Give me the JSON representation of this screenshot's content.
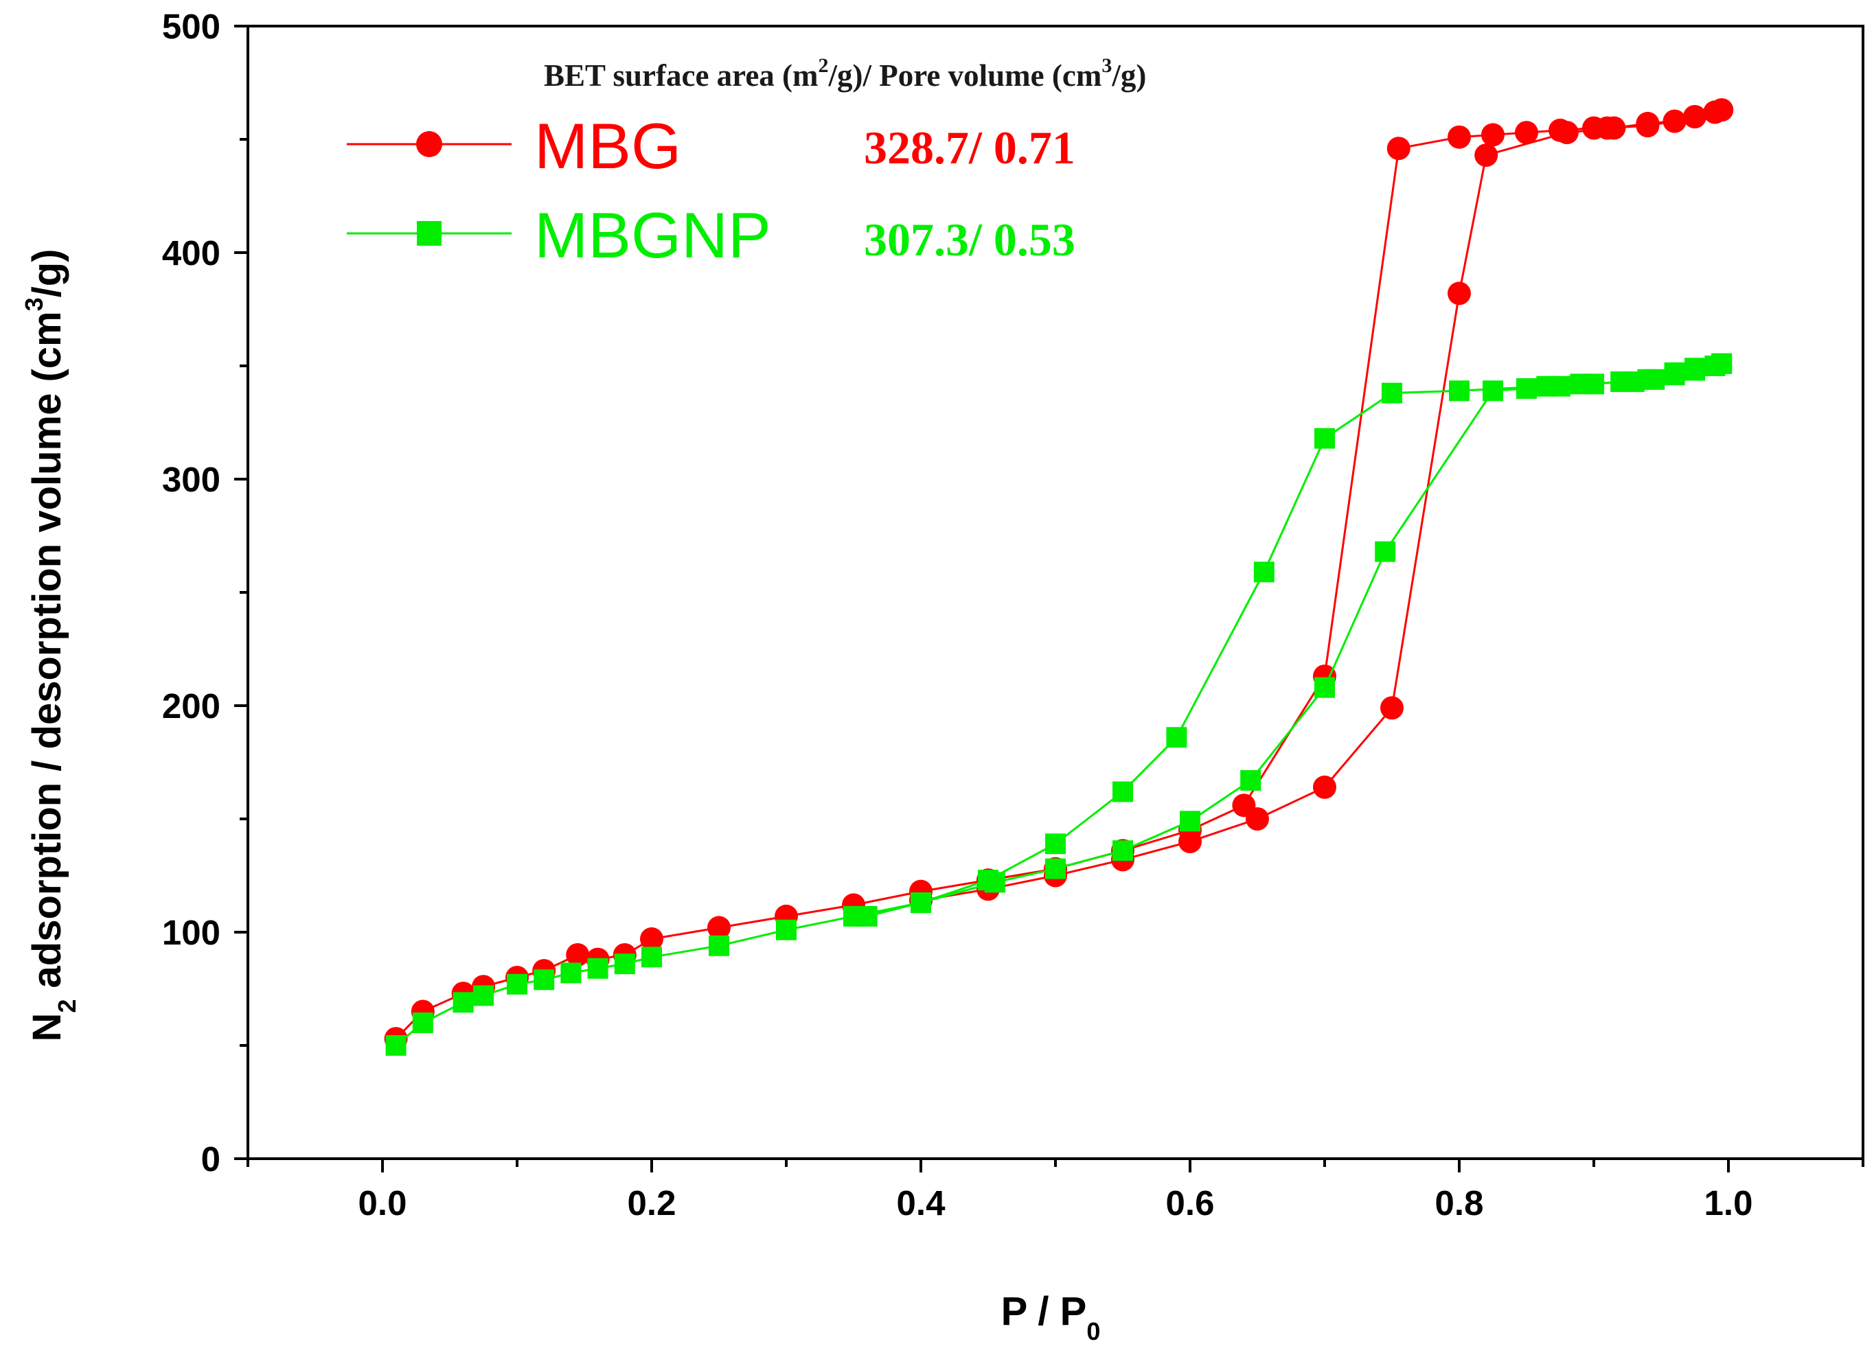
{
  "chart_data": {
    "type": "line",
    "xlabel": "P / P",
    "xlabel_subscript": "0",
    "ylabel_prefix": "N",
    "ylabel_prefix_subscript": "2",
    "ylabel_mid": " adsorption / desorption volume (cm",
    "ylabel_superscript": "3",
    "ylabel_suffix": "/g)",
    "xlim": [
      -0.1,
      1.1
    ],
    "ylim": [
      0,
      500
    ],
    "xticks": [
      0.0,
      0.2,
      0.4,
      0.6,
      0.8,
      1.0
    ],
    "xtick_labels": [
      "0.0",
      "0.2",
      "0.4",
      "0.6",
      "0.8",
      "1.0"
    ],
    "yticks": [
      0,
      100,
      200,
      300,
      400,
      500
    ],
    "ytick_labels": [
      "0",
      "100",
      "200",
      "300",
      "400",
      "500"
    ],
    "legend_header": {
      "part1": "BET surface area (m",
      "sup1": "2",
      "part2": "/g)/ Pore volume (cm",
      "sup2": "3",
      "part3": "/g)"
    },
    "series": [
      {
        "name": "MBG",
        "value_label": "328.7/ 0.71",
        "color": "#ff0000",
        "marker": "circle",
        "adsorption": [
          [
            0.01,
            53
          ],
          [
            0.03,
            65
          ],
          [
            0.06,
            73
          ],
          [
            0.075,
            76
          ],
          [
            0.1,
            80
          ],
          [
            0.12,
            83
          ],
          [
            0.145,
            90
          ],
          [
            0.16,
            88
          ],
          [
            0.18,
            90
          ],
          [
            0.2,
            97
          ],
          [
            0.25,
            102
          ],
          [
            0.3,
            107
          ],
          [
            0.35,
            112
          ],
          [
            0.4,
            118
          ],
          [
            0.45,
            123
          ],
          [
            0.5,
            128
          ],
          [
            0.55,
            136
          ],
          [
            0.6,
            145
          ],
          [
            0.64,
            156
          ],
          [
            0.7,
            213
          ],
          [
            0.755,
            446
          ],
          [
            0.8,
            451
          ],
          [
            0.825,
            452
          ],
          [
            0.85,
            453
          ],
          [
            0.875,
            454
          ],
          [
            0.9,
            455
          ],
          [
            0.91,
            455
          ],
          [
            0.94,
            456
          ],
          [
            0.96,
            458
          ],
          [
            0.975,
            460
          ],
          [
            0.99,
            462
          ],
          [
            0.995,
            463
          ]
        ],
        "desorption": [
          [
            0.995,
            463
          ],
          [
            0.99,
            462
          ],
          [
            0.975,
            460
          ],
          [
            0.96,
            458
          ],
          [
            0.94,
            457
          ],
          [
            0.915,
            455
          ],
          [
            0.88,
            453
          ],
          [
            0.82,
            443
          ],
          [
            0.8,
            382
          ],
          [
            0.75,
            199
          ],
          [
            0.7,
            164
          ],
          [
            0.65,
            150
          ],
          [
            0.6,
            140
          ],
          [
            0.55,
            132
          ],
          [
            0.5,
            125
          ],
          [
            0.45,
            119
          ],
          [
            0.4,
            114
          ]
        ]
      },
      {
        "name": "MBGNP",
        "value_label": "307.3/ 0.53",
        "color": "#00ee00",
        "marker": "square",
        "adsorption": [
          [
            0.01,
            50
          ],
          [
            0.03,
            60
          ],
          [
            0.06,
            69
          ],
          [
            0.075,
            72
          ],
          [
            0.1,
            77
          ],
          [
            0.12,
            79
          ],
          [
            0.14,
            82
          ],
          [
            0.16,
            84
          ],
          [
            0.18,
            86
          ],
          [
            0.2,
            89
          ],
          [
            0.25,
            94
          ],
          [
            0.3,
            101
          ],
          [
            0.35,
            107
          ],
          [
            0.4,
            113
          ],
          [
            0.455,
            122
          ],
          [
            0.5,
            128
          ],
          [
            0.55,
            136
          ],
          [
            0.6,
            149
          ],
          [
            0.645,
            167
          ],
          [
            0.7,
            208
          ],
          [
            0.745,
            268
          ],
          [
            0.825,
            339
          ],
          [
            0.85,
            340
          ],
          [
            0.875,
            341
          ],
          [
            0.9,
            342
          ],
          [
            0.92,
            343
          ],
          [
            0.94,
            344
          ],
          [
            0.96,
            346
          ],
          [
            0.975,
            348
          ],
          [
            0.99,
            350
          ],
          [
            0.995,
            351
          ]
        ],
        "desorption": [
          [
            0.995,
            351
          ],
          [
            0.975,
            349
          ],
          [
            0.96,
            347
          ],
          [
            0.945,
            344
          ],
          [
            0.93,
            343
          ],
          [
            0.89,
            342
          ],
          [
            0.865,
            341
          ],
          [
            0.8,
            339
          ],
          [
            0.75,
            338
          ],
          [
            0.7,
            318
          ],
          [
            0.655,
            259
          ],
          [
            0.59,
            186
          ],
          [
            0.55,
            162
          ],
          [
            0.5,
            139
          ],
          [
            0.45,
            123
          ],
          [
            0.4,
            113
          ],
          [
            0.36,
            107
          ]
        ]
      }
    ]
  }
}
